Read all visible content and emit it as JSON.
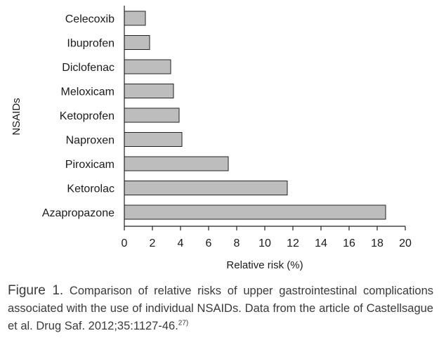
{
  "chart_data": {
    "type": "bar",
    "orientation": "horizontal",
    "categories": [
      "Celecoxib",
      "Ibuprofen",
      "Diclofenac",
      "Meloxicam",
      "Ketoprofen",
      "Naproxen",
      "Piroxicam",
      "Ketorolac",
      "Azapropazone"
    ],
    "values": [
      1.5,
      1.8,
      3.3,
      3.5,
      3.9,
      4.1,
      7.4,
      11.6,
      18.6
    ],
    "xlabel": "Relative risk (%)",
    "ylabel": "NSAIDs",
    "xlim": [
      0,
      20
    ],
    "xticks": [
      0,
      2,
      4,
      6,
      8,
      10,
      12,
      14,
      16,
      18,
      20
    ],
    "xtick_labels": [
      "0",
      "2",
      "4",
      "6",
      "8",
      "10",
      "12",
      "14",
      "16",
      "18",
      "20"
    ],
    "bar_color": "#bdbdbd",
    "edge_color": "#222222",
    "grid": false
  },
  "caption": {
    "label": "Figure 1.",
    "text": " Comparison of relative risks of upper gastrointestinal complications associated with the use of individual NSAIDs. Data from the article of Castellsague et al. Drug Saf. 2012;35:1127-46.",
    "ref": "27)"
  }
}
